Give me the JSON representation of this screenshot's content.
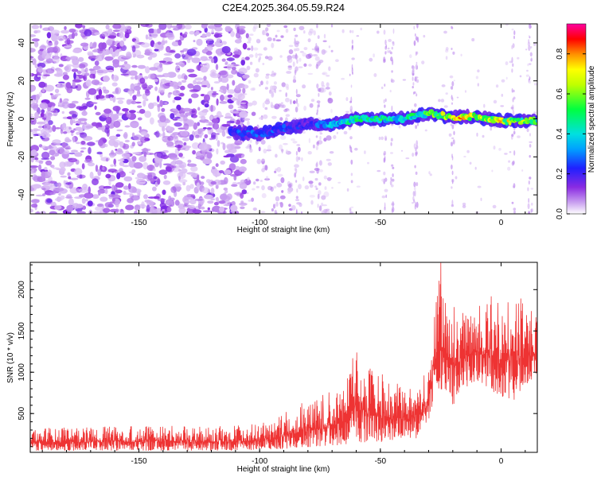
{
  "title": "C2E4.2025.364.05.59.R24",
  "colors": {
    "snr_line": "#ee3333",
    "axis": "#000000",
    "spectrogram_low": "#8a2be2"
  },
  "chart_data": [
    {
      "type": "heatmap",
      "title": "C2E4.2025.364.05.59.R24",
      "xlabel": "Height of straight line (km)",
      "ylabel": "Frequency (Hz)",
      "xlim": [
        -195,
        15
      ],
      "ylim": [
        -50,
        50
      ],
      "xticks": [
        -150,
        -100,
        -50,
        0
      ],
      "xtick_labels": [
        "-150",
        "-100",
        "-50",
        "0"
      ],
      "yticks": [
        -40,
        -20,
        0,
        20,
        40
      ],
      "ytick_labels": [
        "-40",
        "-20",
        "0",
        "20",
        "40"
      ],
      "colorbar": {
        "label": "Normalized spectral amplitude",
        "range": [
          0,
          0.95
        ],
        "ticks": [
          0.0,
          0.2,
          0.4,
          0.6,
          0.8
        ],
        "tick_labels": [
          "0.0",
          "0.2",
          "0.4",
          "0.6",
          "0.8"
        ],
        "colormap": "rainbow (white to violet, blue, cyan, green, yellow, red, magenta)"
      },
      "signal_track": {
        "description": "Narrow doppler track near 0 Hz",
        "x": [
          -112,
          -100,
          -90,
          -80,
          -70,
          -60,
          -50,
          -40,
          -30,
          -20,
          -10,
          0,
          10,
          15
        ],
        "frequency_hz": [
          -7,
          -8,
          -5,
          -3,
          -3,
          0,
          0,
          0,
          3,
          1,
          1,
          -1,
          -1,
          -1
        ],
        "peak_amplitude": [
          0.3,
          0.35,
          0.3,
          0.25,
          0.45,
          0.6,
          0.6,
          0.55,
          0.65,
          0.9,
          0.9,
          0.85,
          0.75,
          0.6
        ]
      },
      "background": {
        "description": "Broadband noise of low amplitude (about 0.05 - 0.25) dense for x < -110 km, sparse beyond"
      }
    },
    {
      "type": "line",
      "xlabel": "Height of straight line (km)",
      "ylabel": "SNR (10 * v/v)",
      "xlim": [
        -195,
        15
      ],
      "ylim": [
        30,
        2330
      ],
      "xticks": [
        -150,
        -100,
        -50,
        0
      ],
      "xtick_labels": [
        "-150",
        "-100",
        "-50",
        "0"
      ],
      "yticks": [
        500,
        1000,
        1500,
        2000
      ],
      "ytick_labels": [
        "500",
        "1000",
        "1500",
        "2000"
      ],
      "series": [
        {
          "name": "SNR",
          "color": "#ee3333",
          "envelope_x": [
            -195,
            -150,
            -110,
            -95,
            -85,
            -75,
            -65,
            -60,
            -55,
            -50,
            -45,
            -40,
            -35,
            -30,
            -27,
            -25,
            -22,
            -20,
            -15,
            -10,
            -5,
            0,
            5,
            10,
            15
          ],
          "envelope_low": [
            50,
            50,
            50,
            60,
            80,
            100,
            120,
            150,
            150,
            150,
            180,
            200,
            200,
            400,
            800,
            800,
            700,
            600,
            800,
            900,
            800,
            700,
            650,
            800,
            1000
          ],
          "envelope_high": [
            320,
            350,
            350,
            400,
            600,
            700,
            900,
            1300,
            1050,
            1000,
            900,
            800,
            900,
            1000,
            1900,
            2330,
            1900,
            1800,
            1700,
            1800,
            1950,
            1800,
            2050,
            1800,
            1700
          ]
        }
      ]
    }
  ]
}
